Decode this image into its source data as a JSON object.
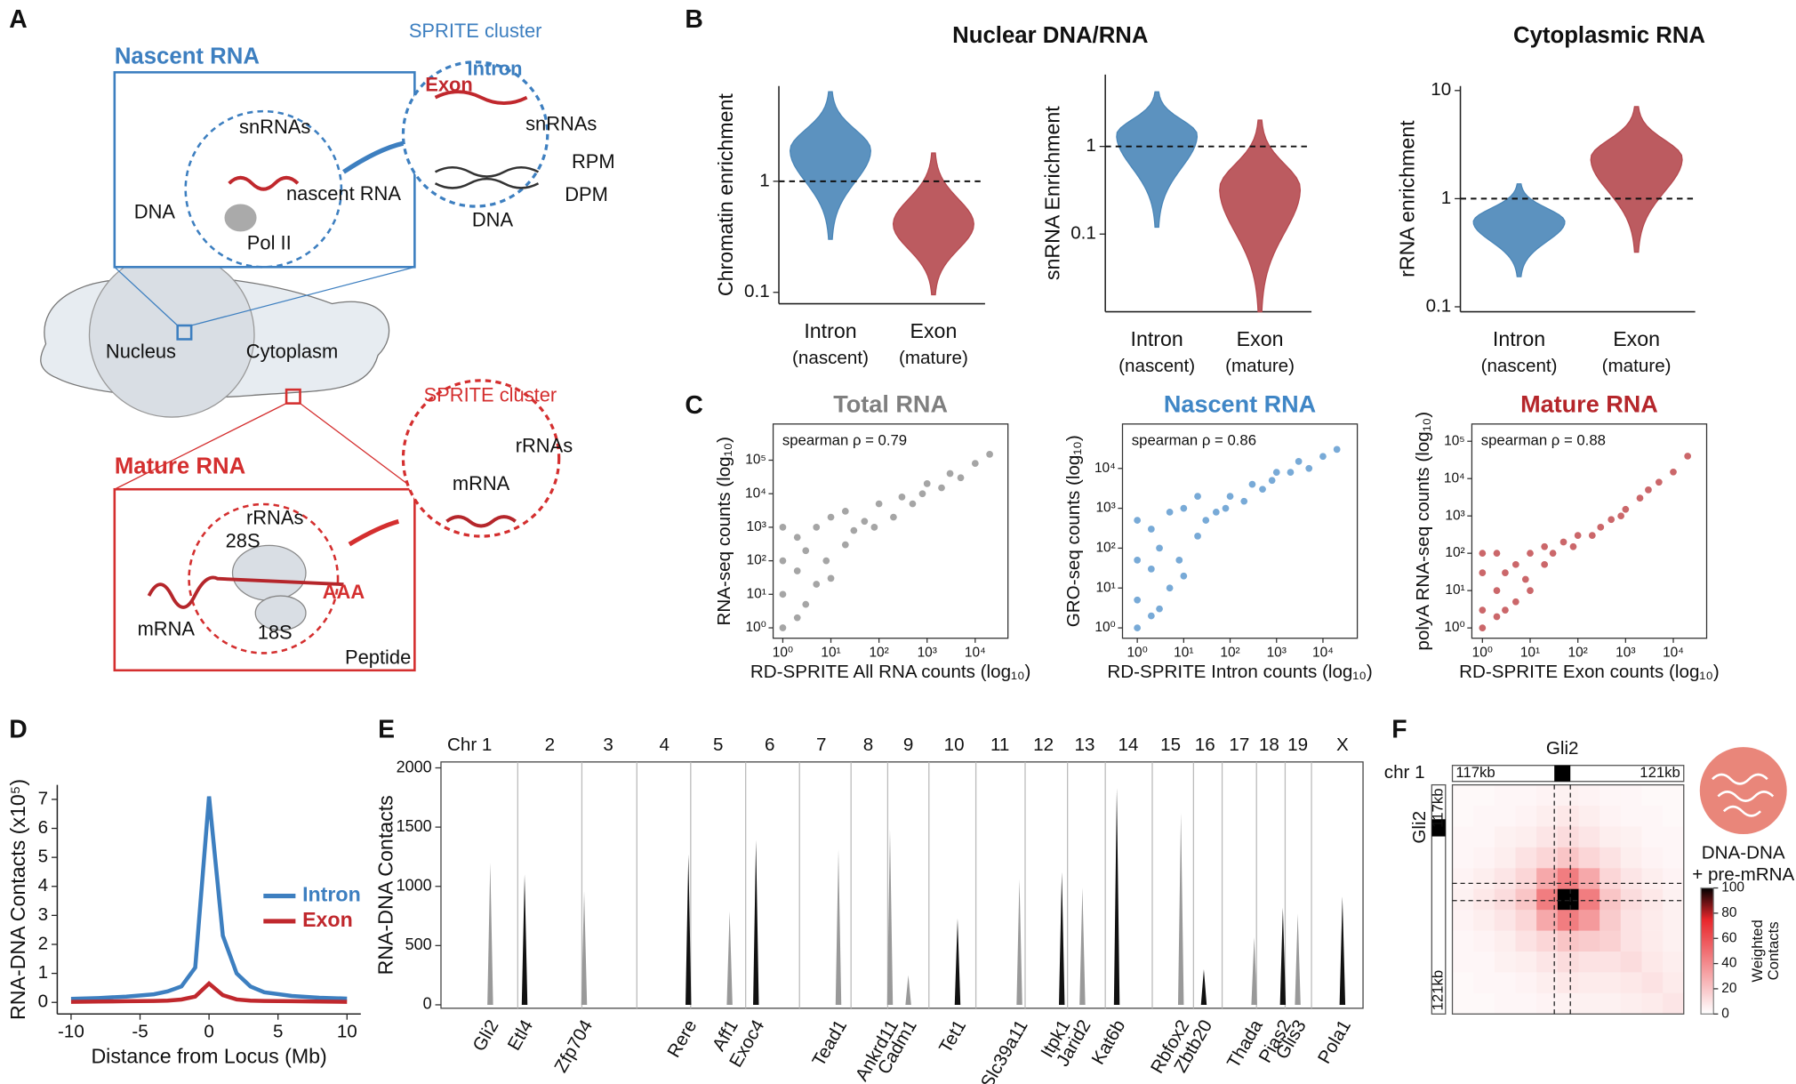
{
  "panel_labels": [
    "A",
    "B",
    "C",
    "D",
    "E",
    "F"
  ],
  "diagram": {
    "nascent_title": "Nascent RNA",
    "sprite_cluster_top": "SPRITE cluster",
    "intron": "Intron",
    "exon": "Exon",
    "snrnas_inset": "snRNAs",
    "snrnas_cluster": "snRNAs",
    "rpm": "RPM",
    "dpm": "DPM",
    "dna_cluster": "DNA",
    "dna_inset": "DNA",
    "nascent_rna": "nascent RNA",
    "pol2": "Pol II",
    "nucleus": "Nucleus",
    "cytoplasm": "Cytoplasm",
    "sprite_cluster_bottom": "SPRITE cluster",
    "mature_title": "Mature RNA",
    "rrnas_cluster": "rRNAs",
    "rrnas_inset": "rRNAs",
    "s28": "28S",
    "mrna_cluster": "mRNA",
    "mrna_inset": "mRNA",
    "polya": "AAA",
    "s18": "18S",
    "peptide": "Peptide"
  },
  "group_titles": {
    "nuclear": "Nuclear DNA/RNA",
    "cytoplasmic": "Cytoplasmic RNA"
  },
  "chart_data": [
    {
      "type": "violin",
      "ylabel": "Chromatin enrichment",
      "categories": [
        "Intron",
        "Exon"
      ],
      "category_notes": [
        "(nascent)",
        "(mature)"
      ],
      "log_scale": true,
      "ylim": [
        0.079,
        7.2
      ],
      "yticks": [
        0.1,
        1
      ],
      "reference_line": 1,
      "violins": [
        {
          "color": "#4a86b8",
          "min": 0.3,
          "median": 1.9,
          "max": 6.4
        },
        {
          "color": "#b5494f",
          "min": 0.095,
          "median": 0.41,
          "max": 1.8
        }
      ]
    },
    {
      "type": "violin",
      "ylabel": "snRNA Enrichment",
      "categories": [
        "Intron",
        "Exon"
      ],
      "category_notes": [
        "(nascent)",
        "(mature)"
      ],
      "log_scale": true,
      "ylim": [
        0.013,
        6.6
      ],
      "yticks": [
        0.1,
        1
      ],
      "reference_line": 1,
      "violins": [
        {
          "color": "#4a86b8",
          "min": 0.12,
          "median": 1.35,
          "max": 4.2
        },
        {
          "color": "#b5494f",
          "min": 0.013,
          "median": 0.33,
          "max": 2.0
        }
      ]
    },
    {
      "type": "violin",
      "ylabel": "rRNA enrichment",
      "categories": [
        "Intron",
        "Exon"
      ],
      "category_notes": [
        "(nascent)",
        "(mature)"
      ],
      "log_scale": true,
      "ylim": [
        0.09,
        11
      ],
      "yticks": [
        0.1,
        1,
        10
      ],
      "reference_line": 1,
      "violins": [
        {
          "color": "#4a86b8",
          "min": 0.19,
          "median": 0.61,
          "max": 1.37
        },
        {
          "color": "#b5494f",
          "min": 0.32,
          "median": 2.36,
          "max": 7.1
        }
      ]
    },
    {
      "type": "scatter",
      "title": "Total RNA",
      "annotation": "spearman ρ = 0.79",
      "xlabel": "RD-SPRITE All RNA counts (log₁₀)",
      "ylabel": "RNA-seq counts (log₁₀)",
      "log_scale": true,
      "color": "#7f7f7f",
      "xlim": [
        0.63,
        48000
      ],
      "ylim": [
        0.49,
        1200000
      ],
      "xticks": [
        {
          "value": 1,
          "label": "10⁰"
        },
        {
          "value": 10,
          "label": "10¹"
        },
        {
          "value": 100,
          "label": "10²"
        },
        {
          "value": 1000,
          "label": "10³"
        },
        {
          "value": 10000,
          "label": "10⁴"
        }
      ],
      "yticks": [
        {
          "value": 1,
          "label": "10⁰"
        },
        {
          "value": 10,
          "label": "10¹"
        },
        {
          "value": 100,
          "label": "10²"
        },
        {
          "value": 1000,
          "label": "10³"
        },
        {
          "value": 10000,
          "label": "10⁴"
        },
        {
          "value": 100000,
          "label": "10⁵"
        }
      ],
      "x": [
        1,
        1,
        1,
        1,
        2,
        2,
        2,
        3,
        3,
        5,
        5,
        8,
        10,
        10,
        20,
        20,
        30,
        50,
        80,
        100,
        200,
        300,
        500,
        800,
        1000,
        2000,
        3000,
        5000,
        10000,
        20000
      ],
      "y": [
        1,
        10,
        100,
        1000,
        2,
        50,
        500,
        5,
        200,
        20,
        1000,
        100,
        30,
        2000,
        300,
        3000,
        800,
        1500,
        1000,
        5000,
        2000,
        8000,
        5000,
        10000,
        20000,
        15000,
        40000,
        30000,
        80000,
        150000
      ]
    },
    {
      "type": "scatter",
      "title": "Nascent RNA",
      "annotation": "spearman ρ = 0.86",
      "xlabel": "RD-SPRITE Intron counts (log₁₀)",
      "ylabel": "GRO-seq counts (log₁₀)",
      "log_scale": true,
      "color": "#3f86c6",
      "xlim": [
        0.48,
        55000
      ],
      "ylim": [
        0.55,
        130000
      ],
      "xticks": [
        {
          "value": 1,
          "label": "10⁰"
        },
        {
          "value": 10,
          "label": "10¹"
        },
        {
          "value": 100,
          "label": "10²"
        },
        {
          "value": 1000,
          "label": "10³"
        },
        {
          "value": 10000,
          "label": "10⁴"
        }
      ],
      "yticks": [
        {
          "value": 1,
          "label": "10⁰"
        },
        {
          "value": 10,
          "label": "10¹"
        },
        {
          "value": 100,
          "label": "10²"
        },
        {
          "value": 1000,
          "label": "10³"
        },
        {
          "value": 10000,
          "label": "10⁴"
        }
      ],
      "x": [
        1,
        1,
        1,
        1,
        2,
        2,
        2,
        3,
        3,
        5,
        5,
        8,
        10,
        10,
        20,
        20,
        30,
        50,
        80,
        100,
        200,
        300,
        500,
        800,
        1000,
        2000,
        3000,
        5000,
        10000,
        20000
      ],
      "y": [
        1,
        5,
        50,
        500,
        2,
        30,
        300,
        3,
        100,
        10,
        800,
        50,
        20,
        1000,
        200,
        2000,
        500,
        800,
        1000,
        2000,
        1500,
        4000,
        3000,
        5000,
        8000,
        8000,
        15000,
        10000,
        20000,
        30000
      ]
    },
    {
      "type": "scatter",
      "title": "Mature RNA",
      "annotation": "spearman ρ = 0.88",
      "xlabel": "RD-SPRITE Exon counts (log₁₀)",
      "ylabel": "polyA RNA-seq counts (log₁₀)",
      "log_scale": true,
      "color": "#b5262b",
      "xlim": [
        0.6,
        50000
      ],
      "ylim": [
        0.53,
        290000
      ],
      "xticks": [
        {
          "value": 1,
          "label": "10⁰"
        },
        {
          "value": 10,
          "label": "10¹"
        },
        {
          "value": 100,
          "label": "10²"
        },
        {
          "value": 1000,
          "label": "10³"
        },
        {
          "value": 10000,
          "label": "10⁴"
        }
      ],
      "yticks": [
        {
          "value": 1,
          "label": "10⁰"
        },
        {
          "value": 10,
          "label": "10¹"
        },
        {
          "value": 100,
          "label": "10²"
        },
        {
          "value": 1000,
          "label": "10³"
        },
        {
          "value": 10000,
          "label": "10⁴"
        },
        {
          "value": 100000,
          "label": "10⁵"
        }
      ],
      "x": [
        1,
        1,
        1,
        1,
        2,
        2,
        2,
        3,
        3,
        5,
        5,
        8,
        10,
        10,
        20,
        20,
        30,
        50,
        80,
        100,
        200,
        300,
        500,
        800,
        1000,
        2000,
        3000,
        5000,
        10000,
        20000
      ],
      "y": [
        1,
        3,
        30,
        100,
        2,
        10,
        100,
        3,
        30,
        5,
        50,
        20,
        10,
        100,
        50,
        150,
        100,
        200,
        150,
        300,
        300,
        500,
        800,
        1000,
        1500,
        3000,
        5000,
        8000,
        15000,
        40000
      ]
    },
    {
      "type": "line",
      "ylabel": "RNA-DNA Contacts (x10⁵)",
      "xlabel": "Distance from Locus (Mb)",
      "x": [
        -10,
        -8,
        -6,
        -4,
        -3,
        -2,
        -1,
        0,
        1,
        2,
        3,
        4,
        6,
        8,
        10
      ],
      "xlim": [
        -11,
        11
      ],
      "xticks": [
        -10,
        -5,
        0,
        5,
        10
      ],
      "ylim": [
        -0.4,
        7.5
      ],
      "yticks": [
        0,
        1,
        2,
        3,
        4,
        5,
        6,
        7
      ],
      "legend": "right",
      "series": [
        {
          "name": "Intron",
          "color": "#3d7fc0",
          "values": [
            0.12,
            0.15,
            0.2,
            0.28,
            0.38,
            0.55,
            1.2,
            7.1,
            2.3,
            1.0,
            0.55,
            0.35,
            0.22,
            0.16,
            0.13
          ]
        },
        {
          "name": "Exon",
          "color": "#c0282d",
          "values": [
            0.02,
            0.03,
            0.04,
            0.05,
            0.06,
            0.1,
            0.2,
            0.65,
            0.25,
            0.1,
            0.06,
            0.05,
            0.04,
            0.03,
            0.02
          ]
        }
      ]
    },
    {
      "type": "genome_track",
      "ylabel": "RNA-DNA Contacts",
      "chromosomes": [
        "Chr 1",
        "2",
        "3",
        "4",
        "5",
        "6",
        "7",
        "8",
        "9",
        "10",
        "11",
        "12",
        "13",
        "14",
        "15",
        "16",
        "17",
        "18",
        "19",
        "X"
      ],
      "ylim": [
        0,
        2050
      ],
      "yticks": [
        0,
        500,
        1000,
        1500,
        2000
      ],
      "colors": [
        "#999999",
        "#111111"
      ],
      "genes": [
        "Gli2",
        "Etl4",
        "Zfp704",
        "Rere",
        "Aff1",
        "Exoc4",
        "Tead1",
        "Ankrd11",
        "Cadm1",
        "Tet1",
        "Slc39a11",
        "Itpk1",
        "Jarid2",
        "Kat6b",
        "Rbfox2",
        "Zbtb20",
        "Thada",
        "Pias2",
        "Glis3",
        "Pola1"
      ],
      "values": [
        1200,
        1100,
        960,
        1270,
        790,
        1390,
        1310,
        1480,
        250,
        730,
        1060,
        1120,
        990,
        1830,
        1620,
        300,
        570,
        820,
        770,
        915
      ]
    },
    {
      "type": "heatmap",
      "title": "Gli2",
      "row_label": "chr 1",
      "x_start": "117kb",
      "x_end": "121kb",
      "y_start": "117kb",
      "y_end": "121kb",
      "y_title": "Gli2",
      "annotation_lines": [
        "DNA-DNA",
        "+ pre-mRNA"
      ],
      "colorbar_label": [
        "Weighted",
        "Contacts"
      ],
      "clim": [
        0,
        100
      ],
      "colorbar_ticks": [
        0,
        20,
        40,
        60,
        80,
        100
      ],
      "colors": [
        "#ffffff",
        "#e8262b",
        "#000000"
      ],
      "values": [
        [
          2,
          2,
          3,
          3,
          4,
          5,
          4,
          3,
          3,
          2,
          2
        ],
        [
          2,
          3,
          3,
          4,
          6,
          8,
          6,
          4,
          3,
          3,
          2
        ],
        [
          3,
          3,
          5,
          6,
          9,
          12,
          9,
          6,
          5,
          3,
          3
        ],
        [
          3,
          4,
          6,
          10,
          14,
          20,
          14,
          10,
          6,
          4,
          3
        ],
        [
          4,
          6,
          9,
          14,
          30,
          45,
          30,
          14,
          9,
          6,
          4
        ],
        [
          5,
          8,
          12,
          20,
          45,
          100,
          45,
          20,
          12,
          8,
          5
        ],
        [
          4,
          6,
          9,
          14,
          30,
          45,
          35,
          18,
          10,
          7,
          5
        ],
        [
          3,
          4,
          6,
          10,
          14,
          20,
          18,
          16,
          10,
          7,
          5
        ],
        [
          3,
          3,
          5,
          6,
          9,
          12,
          10,
          10,
          12,
          8,
          6
        ],
        [
          2,
          3,
          3,
          4,
          6,
          8,
          7,
          7,
          8,
          10,
          7
        ],
        [
          2,
          2,
          3,
          3,
          4,
          5,
          5,
          5,
          6,
          7,
          9
        ]
      ]
    }
  ]
}
